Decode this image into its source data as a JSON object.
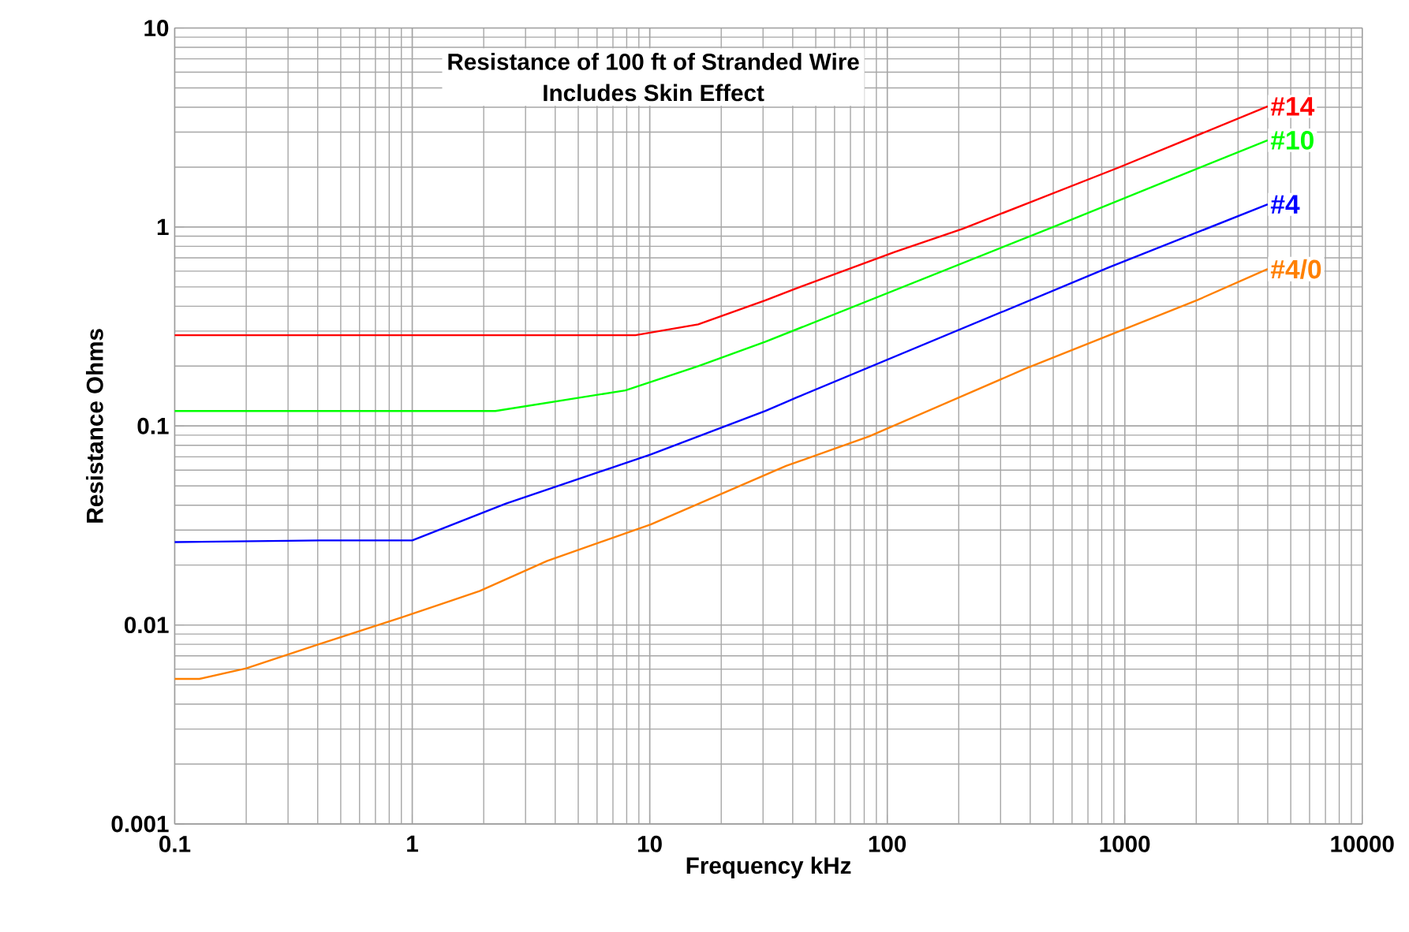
{
  "chart_data": {
    "type": "line",
    "title": "Resistance of 100 ft of Stranded Wire",
    "subtitle": "Includes Skin Effect",
    "xlabel": "Frequency  kHz",
    "ylabel": "Resistance Ohms",
    "log": "xy",
    "grid": true,
    "legend": false,
    "marker": "none",
    "line_style": "solid",
    "xlim": [
      0.1,
      10000
    ],
    "xticks": [
      0.1,
      1,
      10,
      100,
      1000,
      10000
    ],
    "ylim": [
      0.001,
      10
    ],
    "yticks": [
      0.001,
      0.01,
      0.1,
      1,
      10
    ],
    "series": [
      {
        "name": "#14",
        "color": "#ff0000",
        "x": [
          0.1,
          8.7,
          16,
          30.7,
          41.5,
          108,
          208,
          942,
          4000
        ],
        "values": [
          0.286,
          0.286,
          0.324,
          0.428,
          0.492,
          0.75,
          0.98,
          1.99,
          4.04
        ]
      },
      {
        "name": "#10",
        "color": "#00ff00",
        "x": [
          0.1,
          2.24,
          7.9,
          16,
          30.7,
          542,
          2010,
          4000
        ],
        "values": [
          0.119,
          0.119,
          0.151,
          0.2,
          0.265,
          1.04,
          1.96,
          2.73
        ]
      },
      {
        "name": "#4",
        "color": "#0000ff",
        "x": [
          0.1,
          0.41,
          1.0,
          2.47,
          7.5,
          10.1,
          30.7,
          41.5,
          853,
          4000
        ],
        "values": [
          0.0261,
          0.0266,
          0.0266,
          0.0407,
          0.0638,
          0.0719,
          0.119,
          0.139,
          0.625,
          1.3
        ]
      },
      {
        "name": "#4/0",
        "color": "#ff8000",
        "x": [
          0.1,
          0.127,
          0.2,
          0.404,
          0.9,
          1.92,
          3.7,
          10.1,
          37.5,
          84,
          381,
          2010,
          4000
        ],
        "values": [
          0.00536,
          0.00536,
          0.00605,
          0.008,
          0.0109,
          0.0148,
          0.021,
          0.032,
          0.063,
          0.0887,
          0.194,
          0.428,
          0.615
        ]
      }
    ]
  }
}
